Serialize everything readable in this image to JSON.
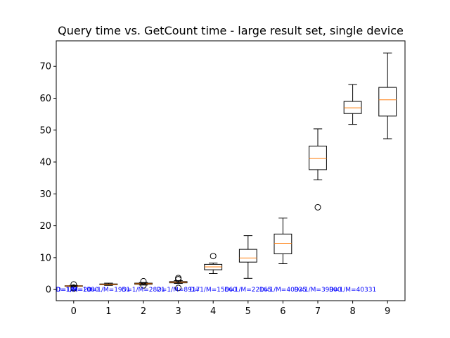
{
  "chart_data": {
    "type": "boxplot",
    "title": "Query time vs. GetCount time - large result set, single device",
    "xlabel": "",
    "ylabel": "",
    "categories": [
      "0",
      "1",
      "2",
      "3",
      "4",
      "5",
      "6",
      "7",
      "8",
      "9"
    ],
    "ylim": [
      -3.5,
      78
    ],
    "yticks": [
      0,
      10,
      20,
      30,
      40,
      50,
      60,
      70
    ],
    "boxes": [
      {
        "x": 0,
        "whislo": 0.9,
        "q1": 1.0,
        "med": 1.1,
        "q3": 1.2,
        "whishi": 1.3,
        "fliers": [
          0.3,
          0.6,
          1.6
        ]
      },
      {
        "x": 1,
        "whislo": 1.3,
        "q1": 1.5,
        "med": 1.6,
        "q3": 1.75,
        "whishi": 2.0,
        "fliers": []
      },
      {
        "x": 2,
        "whislo": 1.4,
        "q1": 1.65,
        "med": 1.8,
        "q3": 2.0,
        "whishi": 2.2,
        "fliers": [
          1.3,
          2.6
        ]
      },
      {
        "x": 3,
        "whislo": 1.9,
        "q1": 2.1,
        "med": 2.3,
        "q3": 2.5,
        "whishi": 2.8,
        "fliers": [
          0.5,
          3.2,
          3.6
        ]
      },
      {
        "x": 4,
        "whislo": 5.0,
        "q1": 6.2,
        "med": 7.1,
        "q3": 7.9,
        "whishi": 8.3,
        "fliers": [
          10.5
        ]
      },
      {
        "x": 5,
        "whislo": 3.5,
        "q1": 8.6,
        "med": 9.9,
        "q3": 12.6,
        "whishi": 16.9,
        "fliers": []
      },
      {
        "x": 6,
        "whislo": 8.1,
        "q1": 11.2,
        "med": 14.5,
        "q3": 17.4,
        "whishi": 22.4,
        "fliers": []
      },
      {
        "x": 7,
        "whislo": 34.4,
        "q1": 37.6,
        "med": 41.1,
        "q3": 45.0,
        "whishi": 50.4,
        "fliers": [
          25.8
        ]
      },
      {
        "x": 8,
        "whislo": 51.8,
        "q1": 55.2,
        "med": 57.0,
        "q3": 59.0,
        "whishi": 64.3,
        "fliers": []
      },
      {
        "x": 9,
        "whislo": 47.3,
        "q1": 54.4,
        "med": 59.5,
        "q3": 63.4,
        "whishi": 74.2,
        "fliers": []
      }
    ],
    "annotations": [
      {
        "x": 0,
        "text": "D=1/M=20"
      },
      {
        "x": 0.1,
        "text": "D=1/M=1080"
      },
      {
        "x": 1,
        "text": "D=1/M=1951"
      },
      {
        "x": 2,
        "text": "D=1/M=2821"
      },
      {
        "x": 3,
        "text": "D=1/M=8917"
      },
      {
        "x": 4,
        "text": "D=1/M=15660"
      },
      {
        "x": 5,
        "text": "D=1/M=22165"
      },
      {
        "x": 6,
        "text": "D=1/M=40925"
      },
      {
        "x": 7,
        "text": "D=1/M=39900"
      },
      {
        "x": 8,
        "text": "D=1/M=40331"
      }
    ],
    "colors": {
      "box": "#000000",
      "median": "#ff7f0e",
      "annotation": "#0000ff"
    }
  }
}
